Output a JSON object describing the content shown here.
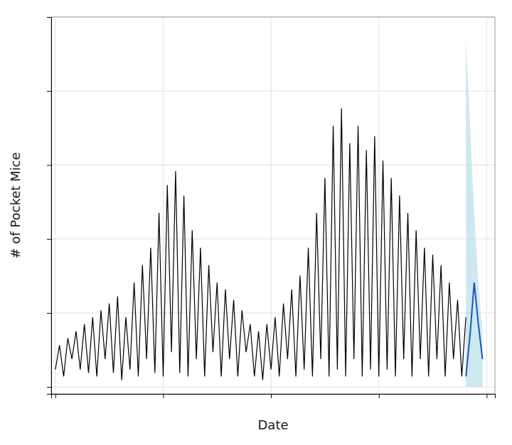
{
  "chart_data": {
    "type": "line",
    "xlabel": "Date",
    "ylabel": "# of Pocket Mice",
    "xlim": [
      -1,
      106
    ],
    "ylim": [
      -2,
      106.25
    ],
    "xticks": [
      0,
      26,
      52,
      78,
      104
    ],
    "yticks": [
      0,
      21.25,
      42.5,
      63.75,
      85,
      106.25
    ],
    "grid": true,
    "tick_labels": false,
    "series": [
      {
        "type": "area",
        "color": "#add8e6",
        "x": [
          99,
          100,
          101,
          102,
          103
        ],
        "lower": [
          0,
          0,
          0,
          0,
          0
        ],
        "upper": [
          100,
          75,
          50,
          30,
          15
        ]
      },
      {
        "type": "line",
        "color": "#000000",
        "x": [
          0,
          1,
          2,
          3,
          4,
          5,
          6,
          7,
          8,
          9,
          10,
          11,
          12,
          13,
          14,
          15,
          16,
          17,
          18,
          19,
          20,
          21,
          22,
          23,
          24,
          25,
          26,
          27,
          28,
          29,
          30,
          31,
          32,
          33,
          34,
          35,
          36,
          37,
          38,
          39,
          40,
          41,
          42,
          43,
          44,
          45,
          46,
          47,
          48,
          49,
          50,
          51,
          52,
          53,
          54,
          55,
          56,
          57,
          58,
          59,
          60,
          61,
          62,
          63,
          64,
          65,
          66,
          67,
          68,
          69,
          70,
          71,
          72,
          73,
          74,
          75,
          76,
          77,
          78,
          79,
          80,
          81,
          82,
          83,
          84,
          85,
          86,
          87,
          88,
          89,
          90,
          91,
          92,
          93,
          94,
          95,
          96,
          97,
          98,
          99
        ],
        "values": [
          5,
          12,
          3,
          14,
          8,
          16,
          5,
          18,
          4,
          20,
          3,
          22,
          8,
          24,
          4,
          26,
          2,
          20,
          5,
          30,
          3,
          35,
          8,
          40,
          4,
          50,
          3,
          58,
          10,
          62,
          4,
          55,
          3,
          45,
          8,
          40,
          3,
          35,
          10,
          30,
          3,
          28,
          8,
          25,
          3,
          22,
          10,
          18,
          3,
          16,
          2,
          18,
          5,
          20,
          3,
          24,
          8,
          28,
          3,
          32,
          5,
          40,
          3,
          50,
          8,
          60,
          3,
          75,
          5,
          80,
          3,
          70,
          8,
          75,
          3,
          68,
          5,
          72,
          3,
          65,
          5,
          60,
          3,
          55,
          8,
          50,
          3,
          45,
          8,
          40,
          3,
          38,
          8,
          35,
          3,
          30,
          8,
          25,
          3,
          20
        ]
      },
      {
        "type": "line",
        "color": "#2255bb",
        "x": [
          99,
          100,
          101,
          102,
          103
        ],
        "values": [
          3,
          15,
          30,
          18,
          8
        ]
      }
    ]
  }
}
